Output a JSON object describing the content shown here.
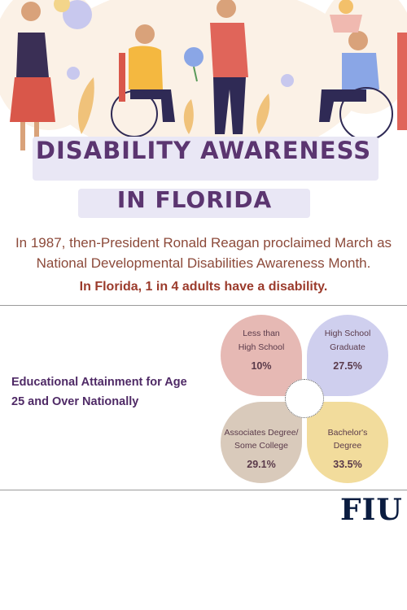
{
  "hero": {
    "illustration": "people-with-disabilities-illustration"
  },
  "title": {
    "line1": "DISABILITY AWARENESS",
    "line2": "IN FLORIDA"
  },
  "intro": "In 1987, then-President Ronald Reagan proclaimed March as National Developmental Disabilities Awareness Month.",
  "highlight": "In Florida, 1 in 4 adults have a disability.",
  "education": {
    "heading": "Educational Attainment for Age 25 and Over Nationally",
    "items": [
      {
        "label_line1": "Less than",
        "label_line2": "High School",
        "value": "10%",
        "color": "#e6b9b4"
      },
      {
        "label_line1": "High School",
        "label_line2": "Graduate",
        "value": "27.5%",
        "color": "#cfcfee"
      },
      {
        "label_line1": "Associates Degree/",
        "label_line2": "Some College",
        "value": "29.1%",
        "color": "#d9cabb"
      },
      {
        "label_line1": "Bachelor's",
        "label_line2": "Degree",
        "value": "33.5%",
        "color": "#f2dc9c"
      }
    ]
  },
  "footer": {
    "logo": "FIU"
  }
}
